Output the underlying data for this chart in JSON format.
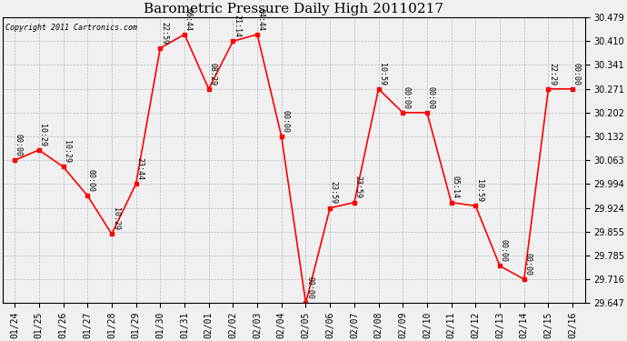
{
  "title": "Barometric Pressure Daily High 20110217",
  "copyright": "Copyright 2011 Cartronics.com",
  "x_labels": [
    "01/24",
    "01/25",
    "01/26",
    "01/27",
    "01/28",
    "01/29",
    "01/30",
    "01/31",
    "02/01",
    "02/02",
    "02/03",
    "02/04",
    "02/05",
    "02/06",
    "02/07",
    "02/08",
    "02/09",
    "02/10",
    "02/11",
    "02/12",
    "02/13",
    "02/14",
    "02/15",
    "02/16"
  ],
  "x_indices": [
    0,
    1,
    2,
    3,
    4,
    5,
    6,
    7,
    8,
    9,
    10,
    11,
    12,
    13,
    14,
    15,
    16,
    17,
    18,
    19,
    20,
    21,
    22,
    23
  ],
  "y_values": [
    30.063,
    30.093,
    30.044,
    29.96,
    29.848,
    29.994,
    30.39,
    30.43,
    30.271,
    30.41,
    30.43,
    30.132,
    29.647,
    29.924,
    29.94,
    30.271,
    30.202,
    30.202,
    29.94,
    29.93,
    29.755,
    29.716,
    30.271,
    30.271
  ],
  "point_labels": [
    "00:00",
    "10:29",
    "10:29",
    "00:00",
    "10:29",
    "23:44",
    "22:59",
    "06:44",
    "08:29",
    "21:14",
    "04:44",
    "00:00",
    "00:00",
    "23:59",
    "23:59",
    "10:59",
    "00:00",
    "00:00",
    "05:14",
    "10:59",
    "00:00",
    "00:00",
    "22:29",
    "00:00"
  ],
  "ylim_min": 29.647,
  "ylim_max": 30.479,
  "y_ticks": [
    29.647,
    29.716,
    29.785,
    29.855,
    29.924,
    29.994,
    30.063,
    30.132,
    30.202,
    30.271,
    30.341,
    30.41,
    30.479
  ],
  "line_color": "red",
  "marker_color": "red",
  "marker_size": 3,
  "bg_color": "#f0f0f0",
  "grid_color": "#bbbbbb",
  "title_fontsize": 11,
  "label_fontsize": 7,
  "point_label_fontsize": 6
}
